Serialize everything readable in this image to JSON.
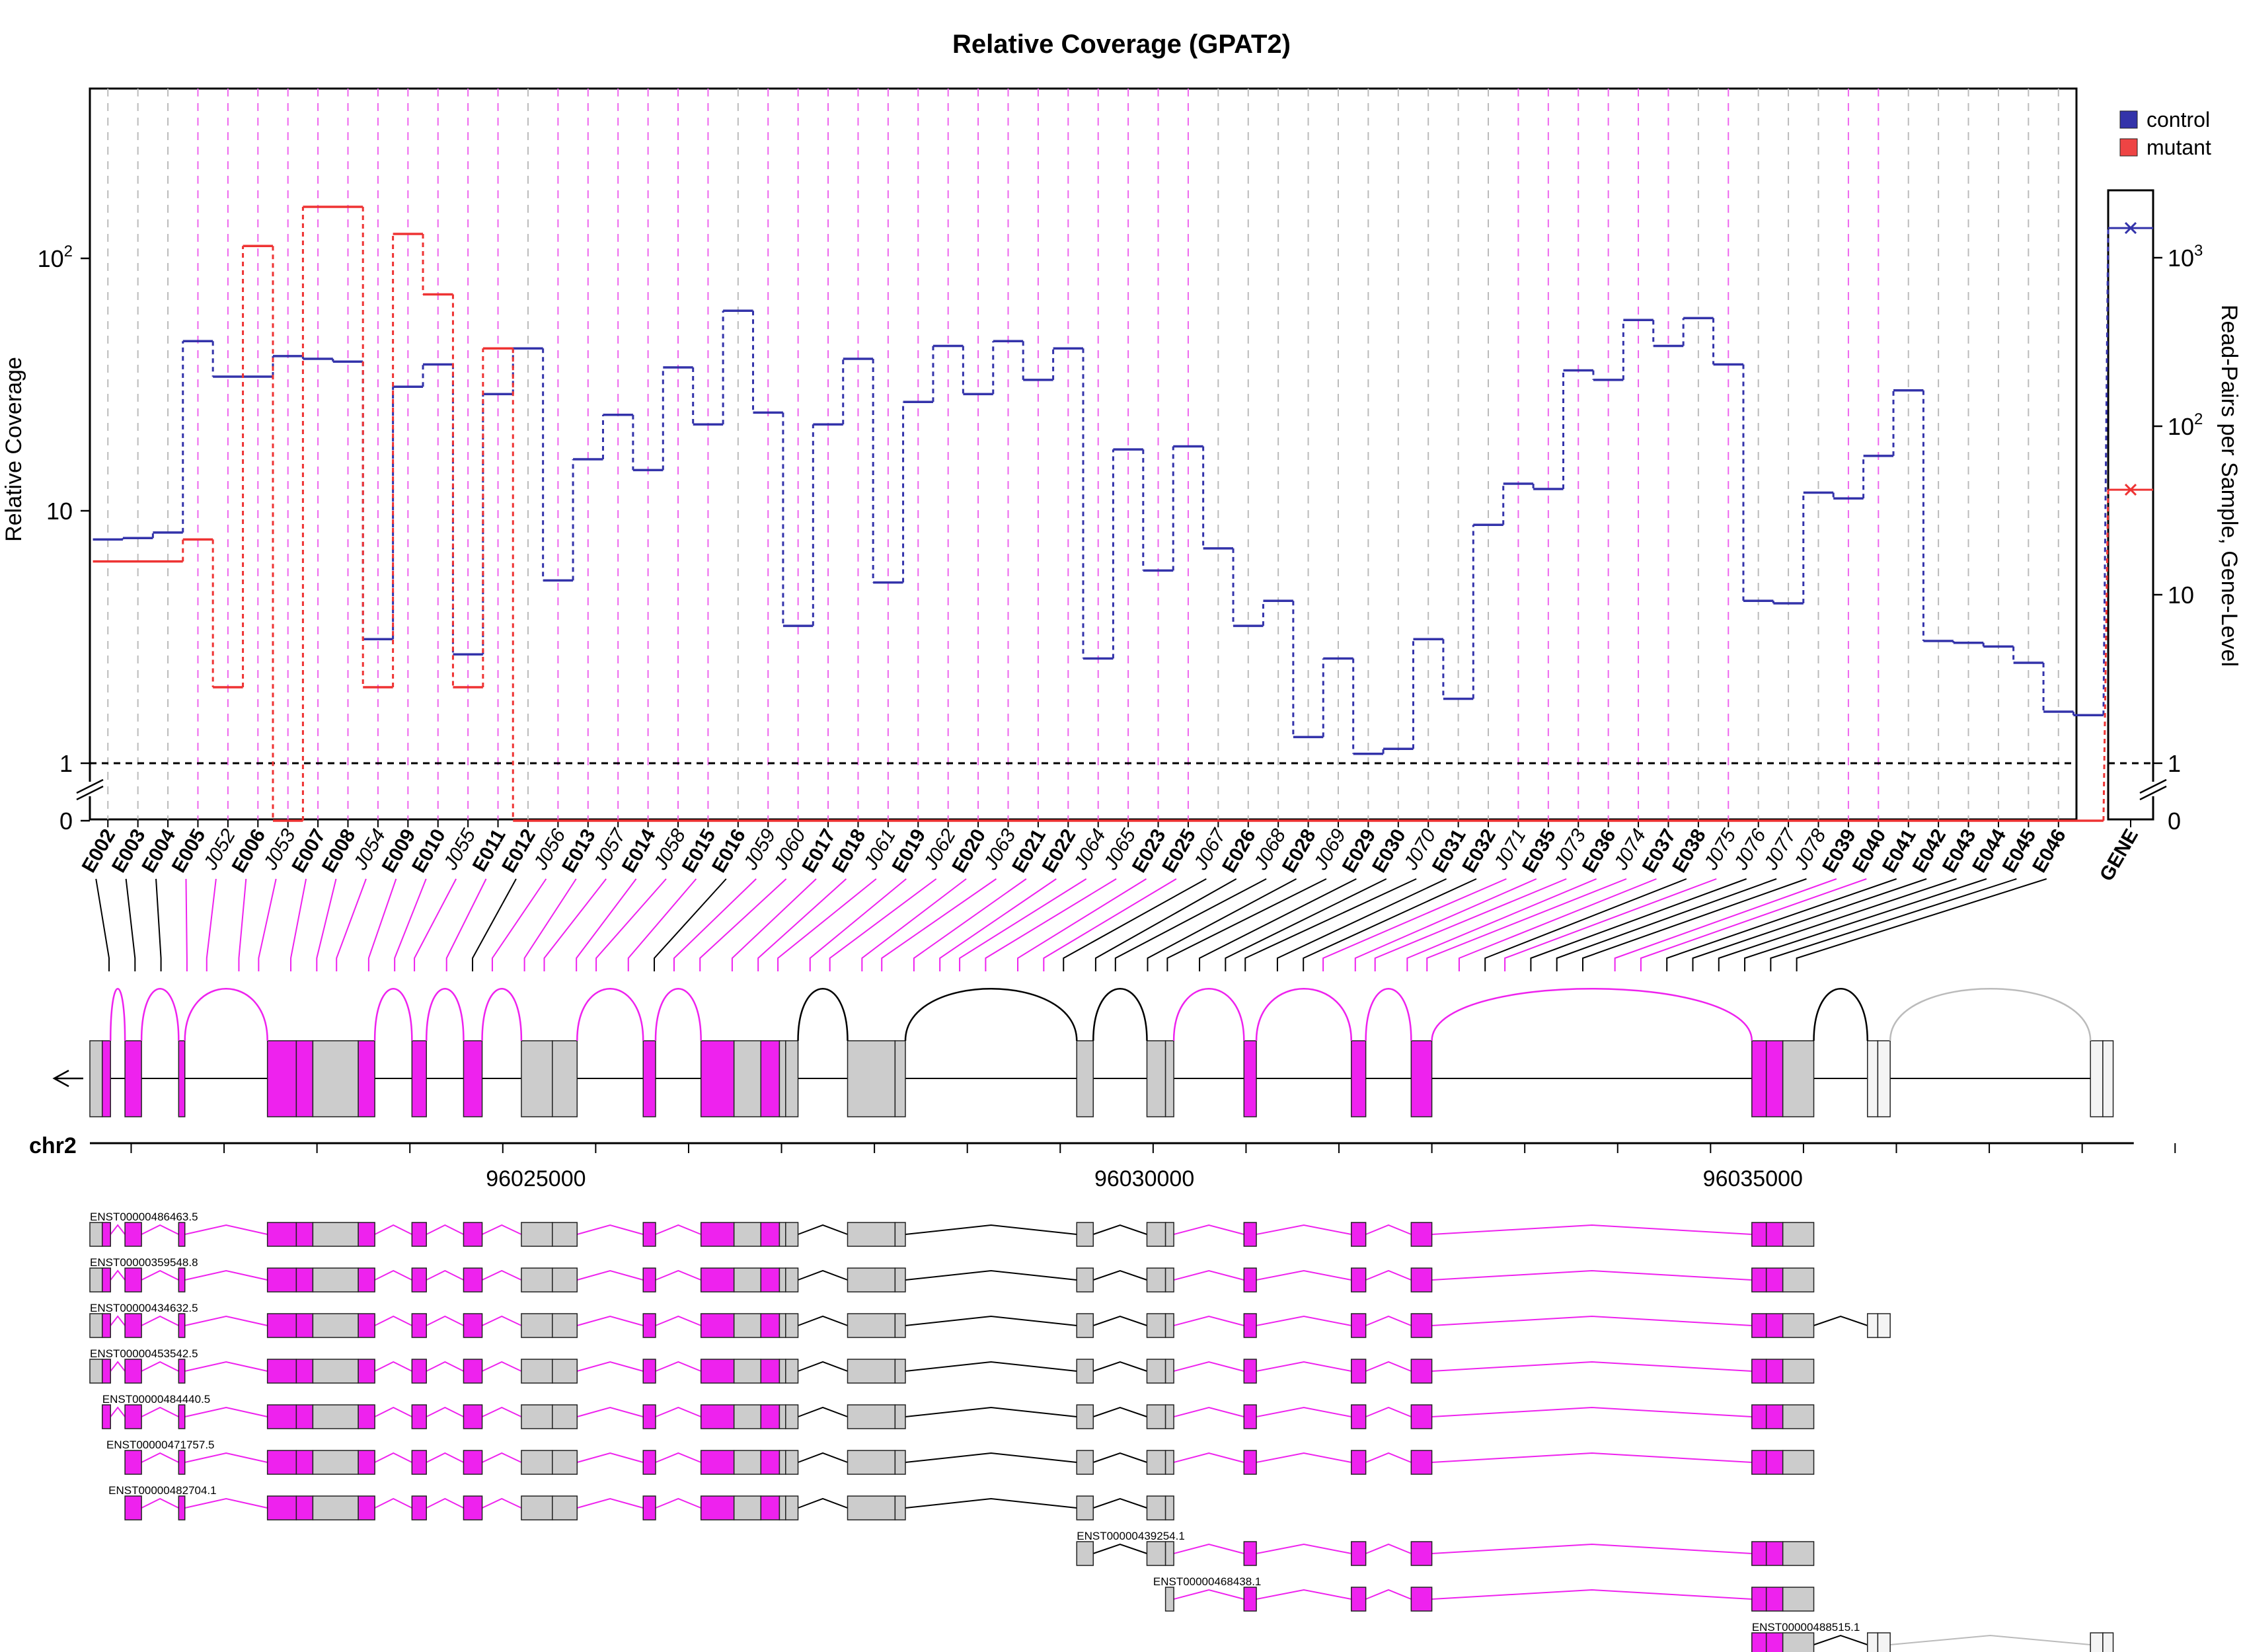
{
  "chart_data": {
    "type": "line",
    "title": "Relative Coverage (GPAT2)",
    "ylabel": "Relative Coverage",
    "ylabel_right": "Read-Pairs per Sample, Gene-Level",
    "yscale": "log",
    "ylim": [
      1,
      200
    ],
    "yticks": [
      {
        "value": 1,
        "label": "1"
      },
      {
        "value": 10,
        "label": "10"
      },
      {
        "value": 100,
        "label": "10",
        "sup": "2"
      }
    ],
    "zero_label": "0",
    "reference_line": 1,
    "legend": {
      "position": "top-right",
      "entries": [
        {
          "name": "control",
          "color": "#3333aa"
        },
        {
          "name": "mutant",
          "color": "#ee3333"
        }
      ]
    },
    "features": [
      "E002",
      "E003",
      "E004",
      "E005",
      "J052",
      "E006",
      "J053",
      "E007",
      "E008",
      "J054",
      "E009",
      "E010",
      "J055",
      "E011",
      "E012",
      "J056",
      "E013",
      "J057",
      "E014",
      "J058",
      "E015",
      "E016",
      "J059",
      "J060",
      "E017",
      "E018",
      "J061",
      "E019",
      "J062",
      "E020",
      "J063",
      "E021",
      "E022",
      "J064",
      "J065",
      "E023",
      "E025",
      "J067",
      "E026",
      "J068",
      "E028",
      "J069",
      "E029",
      "E030",
      "J070",
      "E031",
      "E032",
      "J071",
      "E035",
      "J073",
      "E036",
      "J074",
      "E037",
      "E038",
      "J075",
      "J076",
      "J077",
      "J078",
      "E039",
      "E040",
      "E041",
      "E042",
      "E043",
      "E044",
      "E045",
      "E046"
    ],
    "exon_features": [
      "E002",
      "E003",
      "E004",
      "E005",
      "E006",
      "E007",
      "E008",
      "E009",
      "E010",
      "E011",
      "E012",
      "E013",
      "E014",
      "E015",
      "E016",
      "E017",
      "E018",
      "E019",
      "E020",
      "E021",
      "E022",
      "E023",
      "E025",
      "E026",
      "E028",
      "E029",
      "E030",
      "E031",
      "E032",
      "E035",
      "E036",
      "E037",
      "E038",
      "E039",
      "E040",
      "E041",
      "E042",
      "E043",
      "E044",
      "E045",
      "E046"
    ],
    "significant_features": [
      "E005",
      "J052",
      "E006",
      "J053",
      "E007",
      "E008",
      "J054",
      "E009",
      "E010",
      "J055",
      "E011",
      "J056",
      "E013",
      "J057",
      "E014",
      "J058",
      "E015",
      "J059",
      "J060",
      "E017",
      "E018",
      "J061",
      "E019",
      "J062",
      "E020",
      "J063",
      "E021",
      "E022",
      "J064",
      "J065",
      "E023",
      "E025",
      "J071",
      "E035",
      "J073",
      "E036",
      "J074",
      "E037",
      "J075",
      "E039",
      "E040"
    ],
    "series": [
      {
        "name": "control",
        "color": "#3333aa",
        "segments": [
          {
            "feature": "E002",
            "x0": 0,
            "x1": 1,
            "y": 7.7
          },
          {
            "feature": "E003",
            "x0": 1,
            "x1": 2,
            "y": 7.8
          },
          {
            "feature": "E004",
            "x0": 2,
            "x1": 3,
            "y": 8.2
          },
          {
            "feature": "E005",
            "x0": 3,
            "x1": 4,
            "y": 47
          },
          {
            "feature": "E006",
            "x0": 4,
            "x1": 6,
            "y": 34
          },
          {
            "feature": "E007",
            "x0": 6,
            "x1": 7,
            "y": 41
          },
          {
            "feature": "E007",
            "x0": 7,
            "x1": 8,
            "y": 40
          },
          {
            "feature": "E007",
            "x0": 8,
            "x1": 9,
            "y": 39
          },
          {
            "feature": "E008",
            "x0": 9,
            "x1": 10,
            "y": 3.1
          },
          {
            "feature": "E009",
            "x0": 10,
            "x1": 11,
            "y": 31
          },
          {
            "feature": "E009",
            "x0": 11,
            "x1": 12,
            "y": 38
          },
          {
            "feature": "E010",
            "x0": 12,
            "x1": 13,
            "y": 2.7
          },
          {
            "feature": "E010",
            "x0": 13,
            "x1": 14,
            "y": 29
          },
          {
            "feature": "E011",
            "x0": 14,
            "x1": 15,
            "y": 44
          },
          {
            "feature": "E012",
            "x0": 15,
            "x1": 16,
            "y": 5.3
          },
          {
            "feature": "E013",
            "x0": 16,
            "x1": 17,
            "y": 16
          },
          {
            "feature": "E013",
            "x0": 17,
            "x1": 18,
            "y": 24
          },
          {
            "feature": "E014",
            "x0": 18,
            "x1": 19,
            "y": 14.5
          },
          {
            "feature": "E014",
            "x0": 19,
            "x1": 20,
            "y": 37
          },
          {
            "feature": "E015",
            "x0": 20,
            "x1": 21,
            "y": 22
          },
          {
            "feature": "E015",
            "x0": 21,
            "x1": 22,
            "y": 62
          },
          {
            "feature": "E016",
            "x0": 22,
            "x1": 23,
            "y": 24.5
          },
          {
            "feature": "E017",
            "x0": 23,
            "x1": 24,
            "y": 3.5
          },
          {
            "feature": "E017",
            "x0": 24,
            "x1": 25,
            "y": 22
          },
          {
            "feature": "E017",
            "x0": 25,
            "x1": 26,
            "y": 40
          },
          {
            "feature": "E018",
            "x0": 26,
            "x1": 27,
            "y": 5.2
          },
          {
            "feature": "E019",
            "x0": 27,
            "x1": 28,
            "y": 27
          },
          {
            "feature": "E019",
            "x0": 28,
            "x1": 29,
            "y": 45
          },
          {
            "feature": "E020",
            "x0": 29,
            "x1": 30,
            "y": 29
          },
          {
            "feature": "E020",
            "x0": 30,
            "x1": 31,
            "y": 47
          },
          {
            "feature": "E021",
            "x0": 31,
            "x1": 32,
            "y": 33
          },
          {
            "feature": "E021",
            "x0": 32,
            "x1": 33,
            "y": 44
          },
          {
            "feature": "E022",
            "x0": 33,
            "x1": 34,
            "y": 2.6
          },
          {
            "feature": "E023",
            "x0": 34,
            "x1": 35,
            "y": 17.5
          },
          {
            "feature": "E023",
            "x0": 35,
            "x1": 36,
            "y": 5.8
          },
          {
            "feature": "E025",
            "x0": 36,
            "x1": 37,
            "y": 18
          },
          {
            "feature": "E025",
            "x0": 37,
            "x1": 38,
            "y": 7.1
          },
          {
            "feature": "E026",
            "x0": 38,
            "x1": 39,
            "y": 3.5
          },
          {
            "feature": "E026",
            "x0": 39,
            "x1": 40,
            "y": 4.4
          },
          {
            "feature": "E028",
            "x0": 40,
            "x1": 41,
            "y": 1.27
          },
          {
            "feature": "E028",
            "x0": 41,
            "x1": 42,
            "y": 2.6
          },
          {
            "feature": "E029",
            "x0": 42,
            "x1": 43,
            "y": 1.09
          },
          {
            "feature": "E029",
            "x0": 43,
            "x1": 44,
            "y": 1.14
          },
          {
            "feature": "E030",
            "x0": 44,
            "x1": 45,
            "y": 3.1
          },
          {
            "feature": "E031",
            "x0": 45,
            "x1": 46,
            "y": 1.8
          },
          {
            "feature": "E031",
            "x0": 46,
            "x1": 47,
            "y": 8.8
          },
          {
            "feature": "E032",
            "x0": 47,
            "x1": 48,
            "y": 12.8
          },
          {
            "feature": "E032",
            "x0": 48,
            "x1": 49,
            "y": 12.2
          },
          {
            "feature": "E035",
            "x0": 49,
            "x1": 50,
            "y": 36
          },
          {
            "feature": "E035",
            "x0": 50,
            "x1": 51,
            "y": 33
          },
          {
            "feature": "E036",
            "x0": 51,
            "x1": 52,
            "y": 57
          },
          {
            "feature": "E036",
            "x0": 52,
            "x1": 53,
            "y": 45
          },
          {
            "feature": "E037",
            "x0": 53,
            "x1": 54,
            "y": 58
          },
          {
            "feature": "E038",
            "x0": 54,
            "x1": 55,
            "y": 38
          },
          {
            "feature": "E038",
            "x0": 55,
            "x1": 56,
            "y": 4.4
          },
          {
            "feature": "E038",
            "x0": 56,
            "x1": 57,
            "y": 4.3
          },
          {
            "feature": "E039",
            "x0": 57,
            "x1": 58,
            "y": 11.8
          },
          {
            "feature": "E039",
            "x0": 58,
            "x1": 59,
            "y": 11.2
          },
          {
            "feature": "E039",
            "x0": 59,
            "x1": 60,
            "y": 16.5
          },
          {
            "feature": "E040",
            "x0": 60,
            "x1": 61,
            "y": 30
          },
          {
            "feature": "E041",
            "x0": 61,
            "x1": 62,
            "y": 3.05
          },
          {
            "feature": "E042",
            "x0": 62,
            "x1": 63,
            "y": 3.0
          },
          {
            "feature": "E043",
            "x0": 63,
            "x1": 64,
            "y": 2.9
          },
          {
            "feature": "E044",
            "x0": 64,
            "x1": 65,
            "y": 2.5
          },
          {
            "feature": "E045",
            "x0": 65,
            "x1": 66,
            "y": 1.6
          },
          {
            "feature": "E046",
            "x0": 66,
            "x1": 67,
            "y": 1.55
          }
        ],
        "gene_level": 1500
      },
      {
        "name": "mutant",
        "color": "#ee3333",
        "segments": [
          {
            "feature": "E002",
            "x0": 0,
            "x1": 3,
            "y": 6.3
          },
          {
            "feature": "E005",
            "x0": 3,
            "x1": 4,
            "y": 7.7
          },
          {
            "feature": "E006",
            "x0": 4,
            "x1": 5,
            "y": 2.0
          },
          {
            "feature": "E006",
            "x0": 5,
            "x1": 6,
            "y": 112
          },
          {
            "feature": "J053",
            "x0": 6,
            "x1": 7,
            "y": 0
          },
          {
            "feature": "E007",
            "x0": 7,
            "x1": 9,
            "y": 160
          },
          {
            "feature": "E008",
            "x0": 9,
            "x1": 10,
            "y": 2.0
          },
          {
            "feature": "E009",
            "x0": 10,
            "x1": 11,
            "y": 125
          },
          {
            "feature": "E010",
            "x0": 11,
            "x1": 12,
            "y": 72
          },
          {
            "feature": "E010",
            "x0": 12,
            "x1": 13,
            "y": 2.0
          },
          {
            "feature": "E011",
            "x0": 13,
            "x1": 14,
            "y": 44
          },
          {
            "feature": "E012",
            "x0": 14,
            "x1": 67,
            "y": 0
          }
        ],
        "gene_level": 42
      }
    ],
    "right_axis": {
      "scale": "log",
      "ylim": [
        1,
        2000
      ],
      "ticks": [
        {
          "value": 1,
          "label": "1"
        },
        {
          "value": 10,
          "label": "10"
        },
        {
          "value": 100,
          "label": "10",
          "sup": "2"
        },
        {
          "value": 1000,
          "label": "10",
          "sup": "3"
        }
      ],
      "zero_label": "0"
    },
    "gene_label": "GENE",
    "chromosome": "chr2",
    "genomic_ticks": [
      {
        "value": 96025000,
        "label": "96025000"
      },
      {
        "value": 96030000,
        "label": "96030000"
      },
      {
        "value": 96035000,
        "label": "96035000"
      }
    ],
    "transcripts": [
      {
        "name": "ENST00000486463.5",
        "row": 0
      },
      {
        "name": "ENST00000359548.8",
        "row": 1
      },
      {
        "name": "ENST00000434632.5",
        "row": 2
      },
      {
        "name": "ENST00000453542.5",
        "row": 3
      },
      {
        "name": "ENST00000484440.5",
        "row": 4
      },
      {
        "name": "ENST00000471757.5",
        "row": 5
      },
      {
        "name": "ENST00000482704.1",
        "row": 6
      },
      {
        "name": "ENST00000439254.1",
        "row": 7
      },
      {
        "name": "ENST00000468438.1",
        "row": 8
      },
      {
        "name": "ENST00000488515.1",
        "row": 9
      }
    ]
  }
}
